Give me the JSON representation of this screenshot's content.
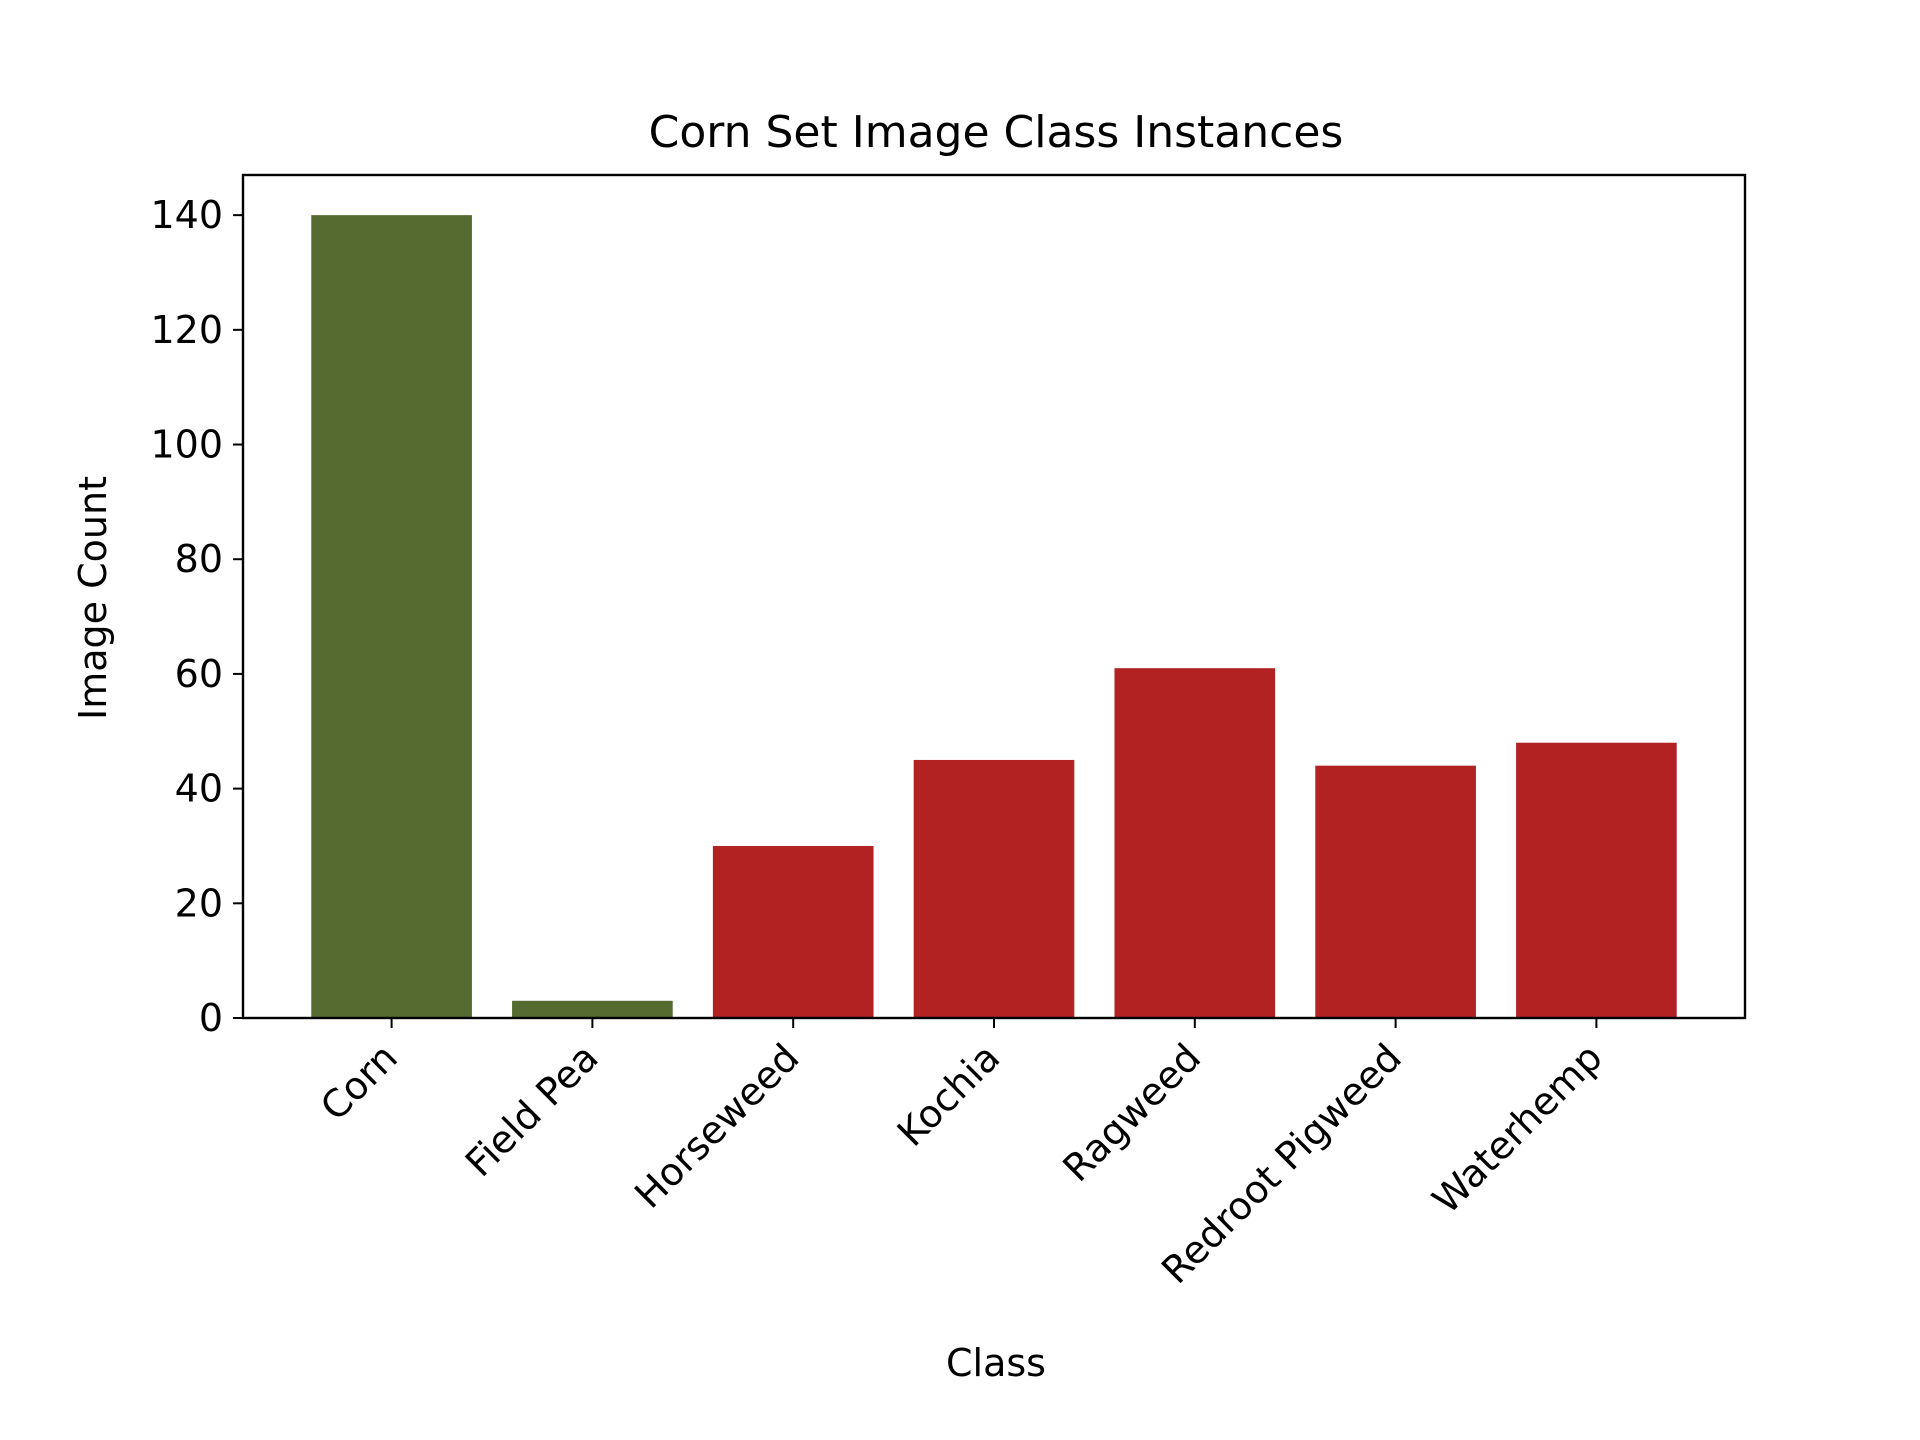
{
  "chart_data": {
    "type": "bar",
    "title": "Corn Set Image Class Instances",
    "xlabel": "Class",
    "ylabel": "Image Count",
    "categories": [
      "Corn",
      "Field Pea",
      "Horseweed",
      "Kochia",
      "Ragweed",
      "Redroot Pigweed",
      "Waterhemp"
    ],
    "values": [
      140,
      3,
      30,
      45,
      61,
      44,
      48
    ],
    "bar_colors": [
      "#556b2f",
      "#556b2f",
      "#b22222",
      "#b22222",
      "#b22222",
      "#b22222",
      "#b22222"
    ],
    "ylim": [
      0,
      147
    ],
    "yticks": [
      0,
      20,
      40,
      60,
      80,
      100,
      120,
      140
    ],
    "grid": false,
    "legend": "none"
  }
}
